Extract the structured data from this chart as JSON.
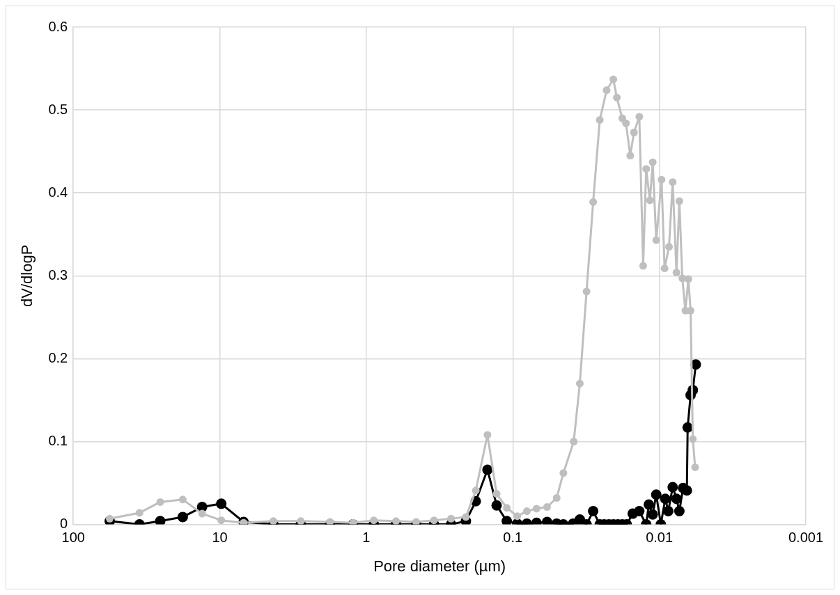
{
  "chart_data": {
    "type": "line",
    "xlabel": "Pore diameter (µm)",
    "ylabel": "dV/dlogP",
    "log": "x",
    "grid": true,
    "marker": "circle",
    "line_style": "solid",
    "xlim": [
      100,
      0.001
    ],
    "xticks": [
      100,
      10,
      1,
      0.1,
      0.01,
      0.001
    ],
    "ylim": [
      0,
      0.6
    ],
    "yticks": [
      0,
      0.1,
      0.2,
      0.3,
      0.4,
      0.5,
      0.6
    ],
    "series": [
      {
        "color": "#bfbfbf",
        "x": [
          56.4,
          35.3,
          25.5,
          17.9,
          13.2,
          9.77,
          6.88,
          4.31,
          2.8,
          1.77,
          1.23,
          0.889,
          0.627,
          0.457,
          0.345,
          0.264,
          0.209,
          0.179,
          0.149,
          0.129,
          0.11,
          0.0933,
          0.0802,
          0.0689,
          0.0584,
          0.0502,
          0.0452,
          0.0384,
          0.0349,
          0.0314,
          0.0283,
          0.0255,
          0.0229,
          0.0206,
          0.0195,
          0.0179,
          0.0169,
          0.0158,
          0.0149,
          0.0137,
          0.0129,
          0.0123,
          0.0116,
          0.0111,
          0.0105,
          0.00966,
          0.00921,
          0.00859,
          0.00811,
          0.00764,
          0.0073,
          0.00697,
          0.00664,
          0.00634,
          0.00612,
          0.00591,
          0.0057
        ],
        "values": [
          0.007,
          0.014,
          0.027,
          0.03,
          0.013,
          0.005,
          0.002,
          0.004,
          0.004,
          0.003,
          0.002,
          0.005,
          0.004,
          0.003,
          0.005,
          0.007,
          0.009,
          0.041,
          0.108,
          0.037,
          0.02,
          0.01,
          0.016,
          0.019,
          0.021,
          0.032,
          0.062,
          0.1,
          0.17,
          0.281,
          0.389,
          0.488,
          0.524,
          0.537,
          0.515,
          0.49,
          0.484,
          0.445,
          0.473,
          0.492,
          0.312,
          0.429,
          0.391,
          0.437,
          0.343,
          0.416,
          0.309,
          0.335,
          0.413,
          0.304,
          0.39,
          0.297,
          0.258,
          0.296,
          0.258,
          0.103,
          0.069
        ]
      },
      {
        "color": "#000000",
        "x": [
          56.4,
          35.3,
          25.5,
          17.9,
          13.2,
          9.77,
          6.88,
          4.31,
          2.8,
          1.77,
          1.23,
          0.889,
          0.627,
          0.457,
          0.345,
          0.264,
          0.209,
          0.179,
          0.149,
          0.129,
          0.11,
          0.0933,
          0.0802,
          0.0689,
          0.0584,
          0.0502,
          0.0452,
          0.0388,
          0.0349,
          0.0314,
          0.0283,
          0.0255,
          0.0238,
          0.0221,
          0.0206,
          0.0192,
          0.0179,
          0.0167,
          0.0152,
          0.0137,
          0.0123,
          0.0118,
          0.0111,
          0.0105,
          0.00977,
          0.00911,
          0.00869,
          0.00811,
          0.00764,
          0.0073,
          0.00689,
          0.00649,
          0.00641,
          0.00612,
          0.00591,
          0.00564
        ],
        "values": [
          0.004,
          0,
          0.004,
          0.009,
          0.021,
          0.025,
          0.003,
          0,
          0,
          0,
          0,
          0,
          0,
          0,
          0,
          0,
          0.004,
          0.028,
          0.066,
          0.023,
          0.004,
          0.001,
          0.001,
          0.002,
          0.003,
          0.001,
          0,
          0.001,
          0.006,
          0,
          0.016,
          0,
          0,
          0,
          0,
          0,
          0,
          0,
          0.013,
          0.016,
          0,
          0.024,
          0.012,
          0.036,
          0,
          0.031,
          0.016,
          0.045,
          0.031,
          0.016,
          0.044,
          0.041,
          0.117,
          0.156,
          0.162,
          0.193
        ]
      }
    ]
  }
}
